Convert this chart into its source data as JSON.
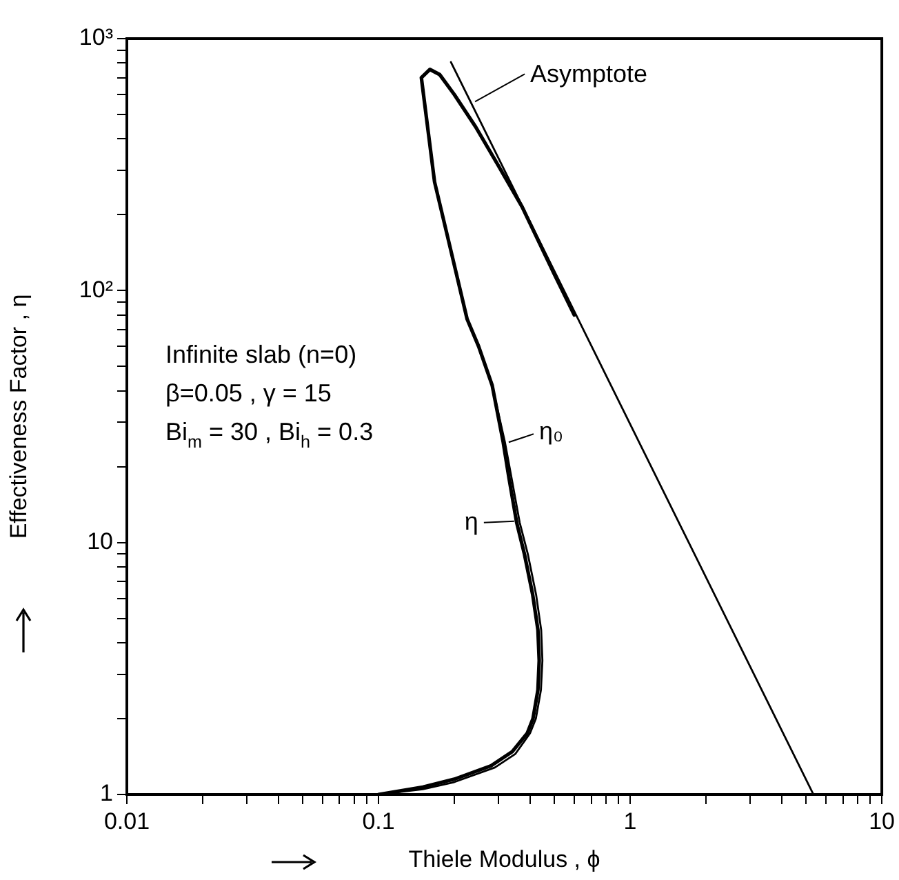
{
  "chart_data": {
    "type": "line",
    "xlabel": "Thiele Modulus , ϕ",
    "ylabel": "Effectiveness Factor , η",
    "log": "xy",
    "xlim": [
      0.01,
      10
    ],
    "ylim": [
      1,
      1000
    ],
    "xticks": [
      0.01,
      {
        "value": 0.02,
        "label": null
      },
      {
        "value": 0.03,
        "label": null
      },
      {
        "value": 0.04,
        "label": null
      },
      {
        "value": 0.05,
        "label": null
      },
      {
        "value": 0.06,
        "label": null
      },
      {
        "value": 0.07,
        "label": null
      },
      {
        "value": 0.08,
        "label": null
      },
      {
        "value": 0.09,
        "label": null
      },
      0.1,
      {
        "value": 0.2,
        "label": null
      },
      {
        "value": 0.3,
        "label": null
      },
      {
        "value": 0.4,
        "label": null
      },
      {
        "value": 0.5,
        "label": null
      },
      {
        "value": 0.6,
        "label": null
      },
      {
        "value": 0.7,
        "label": null
      },
      {
        "value": 0.8,
        "label": null
      },
      {
        "value": 0.9,
        "label": null
      },
      1,
      {
        "value": 2,
        "label": null
      },
      {
        "value": 3,
        "label": null
      },
      {
        "value": 4,
        "label": null
      },
      {
        "value": 5,
        "label": null
      },
      {
        "value": 6,
        "label": null
      },
      {
        "value": 7,
        "label": null
      },
      {
        "value": 8,
        "label": null
      },
      {
        "value": 9,
        "label": null
      },
      10
    ],
    "yticks": [
      1,
      {
        "value": 2,
        "label": null
      },
      {
        "value": 3,
        "label": null
      },
      {
        "value": 4,
        "label": null
      },
      {
        "value": 5,
        "label": null
      },
      {
        "value": 6,
        "label": null
      },
      {
        "value": 7,
        "label": null
      },
      {
        "value": 8,
        "label": null
      },
      {
        "value": 9,
        "label": null
      },
      10,
      {
        "value": 20,
        "label": null
      },
      {
        "value": 30,
        "label": null
      },
      {
        "value": 40,
        "label": null
      },
      {
        "value": 50,
        "label": null
      },
      {
        "value": 60,
        "label": null
      },
      {
        "value": 70,
        "label": null
      },
      {
        "value": 80,
        "label": null
      },
      {
        "value": 90,
        "label": null
      },
      {
        "value": 100,
        "label": "10²"
      },
      {
        "value": 200,
        "label": null
      },
      {
        "value": 300,
        "label": null
      },
      {
        "value": 400,
        "label": null
      },
      {
        "value": 500,
        "label": null
      },
      {
        "value": 600,
        "label": null
      },
      {
        "value": 700,
        "label": null
      },
      {
        "value": 800,
        "label": null
      },
      {
        "value": 900,
        "label": null
      },
      {
        "value": 1000,
        "label": "10³"
      }
    ],
    "grid": false,
    "legend": false,
    "marker": "none",
    "line_style": "solid",
    "annotations": [
      "Infinite slab (n=0)",
      "β=0.05 , γ = 15",
      "Bi$_{m}$ = 30 , Bi$_{h}$ = 0.3",
      {
        "text": "Asymptote",
        "x": 0.23,
        "y": 548
      },
      {
        "text": "η₀",
        "x": 0.313,
        "y": 25
      },
      {
        "text": "η",
        "x": 0.364,
        "y": 12
      }
    ],
    "series": [
      {
        "color": "#000000",
        "x": [
          0.194,
          5.35
        ],
        "values": [
          807,
          1
        ]
      },
      {
        "color": "#000000",
        "x": [
          0.1,
          0.15,
          0.2,
          0.28,
          0.34,
          0.39,
          0.411,
          0.43,
          0.435,
          0.43,
          0.41,
          0.38,
          0.354,
          0.33,
          0.313,
          0.283,
          0.25,
          0.225,
          0.19,
          0.167,
          0.148,
          0.16,
          0.175,
          0.2,
          0.243,
          0.3,
          0.372,
          0.5,
          0.6
        ],
        "values": [
          1,
          1.07,
          1.15,
          1.3,
          1.48,
          1.75,
          2,
          2.6,
          3.4,
          4.5,
          6.2,
          9,
          12,
          18,
          25,
          42,
          60,
          77,
          157,
          270,
          700,
          755,
          720,
          600,
          447,
          312,
          215,
          116,
          80
        ]
      },
      {
        "color": "#000000",
        "x": [
          0.1,
          0.15,
          0.2,
          0.29,
          0.35,
          0.4,
          0.422,
          0.442,
          0.448,
          0.443,
          0.423,
          0.392,
          0.364,
          0.338,
          0.318,
          0.283,
          0.25,
          0.225,
          0.19,
          0.167,
          0.148,
          0.16,
          0.175,
          0.2,
          0.243,
          0.3,
          0.372,
          0.5,
          0.6
        ],
        "values": [
          1,
          1.05,
          1.12,
          1.28,
          1.45,
          1.75,
          2,
          2.6,
          3.4,
          4.5,
          6.2,
          9,
          12,
          18,
          25,
          42,
          60,
          77,
          157,
          270,
          700,
          755,
          720,
          600,
          447,
          312,
          215,
          116,
          80
        ]
      }
    ]
  }
}
